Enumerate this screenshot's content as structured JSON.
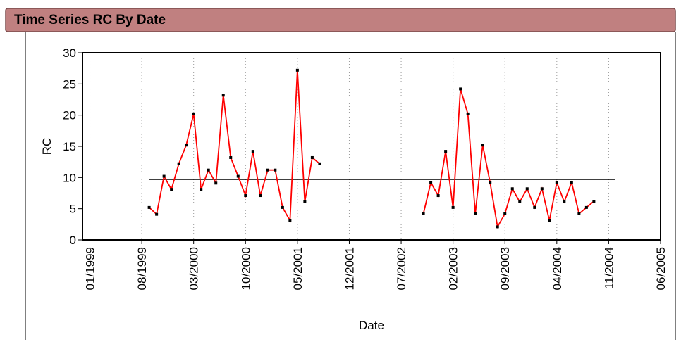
{
  "chart_data": {
    "type": "line",
    "title": "Time Series RC By Date",
    "x_label": "Date",
    "y_label": "RC",
    "x": [
      "09/1999",
      "10/1999",
      "11/1999",
      "12/1999",
      "01/2000",
      "02/2000",
      "03/2000",
      "04/2000",
      "05/2000",
      "06/2000",
      "07/2000",
      "08/2000",
      "09/2000",
      "10/2000",
      "11/2000",
      "12/2000",
      "01/2001",
      "02/2001",
      "03/2001",
      "04/2001",
      "05/2001",
      "06/2001",
      "07/2001",
      "08/2001",
      "09/2001",
      "10/2002",
      "11/2002",
      "12/2002",
      "01/2003",
      "02/2003",
      "03/2003",
      "04/2003",
      "05/2003",
      "06/2003",
      "07/2003",
      "08/2003",
      "09/2003",
      "10/2003",
      "11/2003",
      "12/2003",
      "01/2004",
      "02/2004",
      "03/2004",
      "04/2004",
      "05/2004",
      "06/2004",
      "07/2004",
      "08/2004",
      "09/2004"
    ],
    "series": [
      {
        "name": "RC",
        "color": "#ff0000",
        "values": [
          5.2,
          4.1,
          10.2,
          8.1,
          12.2,
          15.2,
          20.2,
          8.1,
          11.2,
          9.1,
          23.2,
          13.2,
          10.2,
          7.1,
          14.2,
          7.1,
          11.2,
          11.2,
          5.2,
          3.1,
          27.2,
          6.1,
          13.2,
          12.2,
          null,
          4.2,
          9.2,
          7.1,
          14.2,
          5.2,
          24.2,
          20.2,
          4.2,
          15.2,
          9.2,
          2.1,
          4.2,
          8.2,
          6.1,
          8.2,
          5.2,
          8.2,
          3.1,
          9.2,
          6.1,
          9.2,
          4.2,
          5.2,
          6.2
        ]
      }
    ],
    "mean": 9.7,
    "xlim": [
      "12/1998",
      "06/2005"
    ],
    "xticks": [
      "01/1999",
      "08/1999",
      "03/2000",
      "10/2000",
      "05/2001",
      "12/2001",
      "07/2002",
      "02/2003",
      "09/2003",
      "04/2004",
      "11/2004",
      "06/2005"
    ],
    "ylim": [
      0,
      30
    ],
    "yticks": [
      0,
      5,
      10,
      15,
      20,
      25,
      30
    ],
    "grid": "x"
  }
}
